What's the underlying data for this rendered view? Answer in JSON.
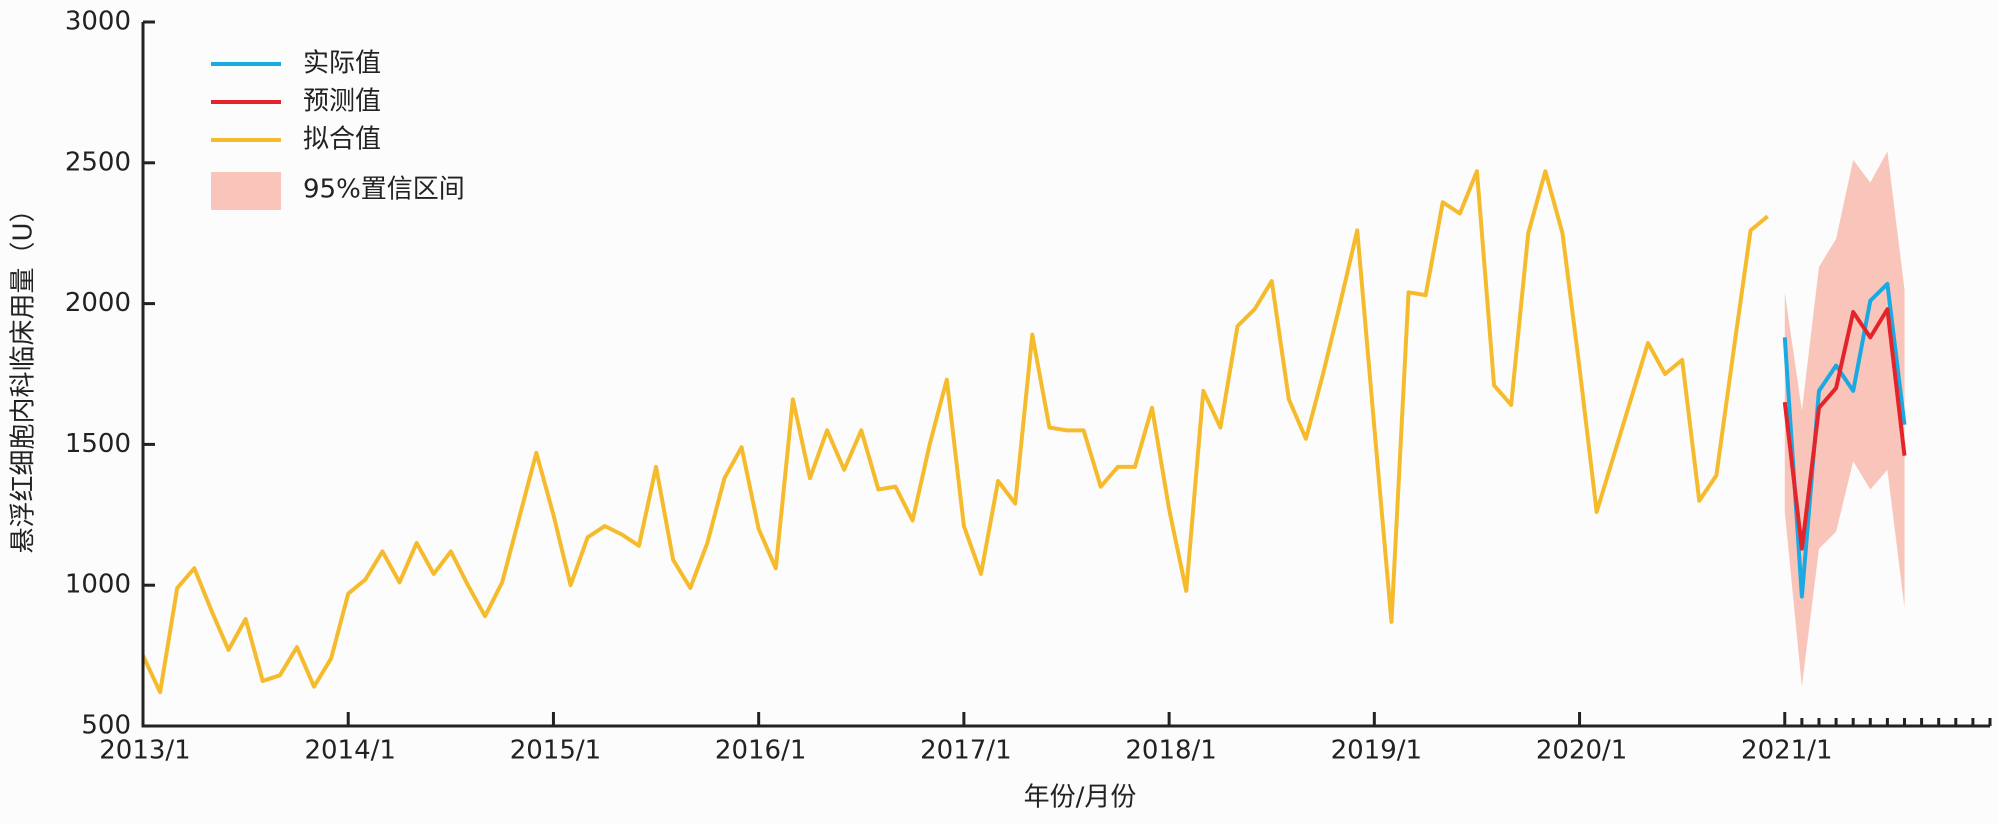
{
  "chart_data": {
    "type": "line",
    "xlabel": "年份/月份",
    "ylabel": "悬浮红细胞内科临床用量（U）",
    "xlim": [
      0,
      108
    ],
    "xticks": [
      {
        "value": 0,
        "label": "2013/1"
      },
      {
        "value": 12,
        "label": "2014/1"
      },
      {
        "value": 24,
        "label": "2015/1"
      },
      {
        "value": 36,
        "label": "2016/1"
      },
      {
        "value": 48,
        "label": "2017/1"
      },
      {
        "value": 60,
        "label": "2018/1"
      },
      {
        "value": 72,
        "label": "2019/1"
      },
      {
        "value": 84,
        "label": "2020/1"
      },
      {
        "value": 96,
        "label": "2021/1"
      }
    ],
    "xminor_ticks": [
      97,
      98,
      99,
      100,
      101,
      102,
      103,
      104,
      105,
      106,
      107,
      108
    ],
    "ylim": [
      500,
      3000
    ],
    "yticks": [
      500,
      1000,
      1500,
      2000,
      2500,
      3000
    ],
    "legend": "upper left",
    "band": {
      "name": "95%置信区间",
      "color": "#f9c5ba",
      "x": [
        96,
        97,
        98,
        99,
        100,
        101,
        102,
        103
      ],
      "lower": [
        1260,
        640,
        1130,
        1190,
        1440,
        1340,
        1410,
        920
      ],
      "upper": [
        2040,
        1620,
        2130,
        2230,
        2510,
        2430,
        2540,
        2050
      ]
    },
    "series": [
      {
        "name": "实际值",
        "color": "#1ba9e1",
        "x": [
          96,
          97,
          98,
          99,
          100,
          101,
          102,
          103
        ],
        "values": [
          1880,
          960,
          1690,
          1780,
          1690,
          2010,
          2070,
          1570
        ]
      },
      {
        "name": "预测值",
        "color": "#e3242b",
        "x": [
          96,
          97,
          98,
          99,
          100,
          101,
          102,
          103
        ],
        "values": [
          1650,
          1130,
          1630,
          1700,
          1970,
          1880,
          1980,
          1460
        ]
      },
      {
        "name": "拟合值",
        "color": "#f5bb2c",
        "x": [
          0,
          1,
          2,
          3,
          4,
          5,
          6,
          7,
          8,
          9,
          10,
          11,
          12,
          13,
          14,
          15,
          16,
          17,
          18,
          19,
          20,
          21,
          22,
          23,
          24,
          25,
          26,
          27,
          28,
          29,
          30,
          31,
          32,
          33,
          34,
          35,
          36,
          37,
          38,
          39,
          40,
          41,
          42,
          43,
          44,
          45,
          46,
          47,
          48,
          49,
          50,
          51,
          52,
          53,
          54,
          55,
          56,
          57,
          58,
          59,
          60,
          61,
          62,
          63,
          64,
          65,
          66,
          67,
          68,
          69,
          70,
          71,
          72,
          73,
          74,
          75,
          76,
          77,
          78,
          79,
          80,
          81,
          82,
          83,
          84,
          85,
          86,
          87,
          88,
          89,
          90,
          91,
          92,
          93,
          94,
          95
        ],
        "values": [
          750,
          620,
          990,
          1060,
          910,
          770,
          880,
          660,
          680,
          780,
          640,
          740,
          970,
          1020,
          1120,
          1010,
          1150,
          1040,
          1120,
          1000,
          890,
          1010,
          1240,
          1470,
          1250,
          1000,
          1170,
          1210,
          1180,
          1140,
          1420,
          1090,
          990,
          1150,
          1380,
          1490,
          1200,
          1060,
          1660,
          1380,
          1550,
          1410,
          1550,
          1340,
          1350,
          1230,
          1500,
          1730,
          1210,
          1040,
          1370,
          1290,
          1890,
          1560,
          1550,
          1550,
          1350,
          1420,
          1420,
          1630,
          1270,
          980,
          1690,
          1560,
          1920,
          1980,
          2080,
          1660,
          1520,
          1750,
          2000,
          2260,
          1560,
          870,
          2040,
          2030,
          2360,
          2320,
          2470,
          1710,
          1640,
          2250,
          2470,
          2250,
          1770,
          1260,
          1460,
          1660,
          1860,
          1750,
          1800,
          1300,
          1390,
          1830,
          2260,
          2310
        ]
      }
    ]
  }
}
